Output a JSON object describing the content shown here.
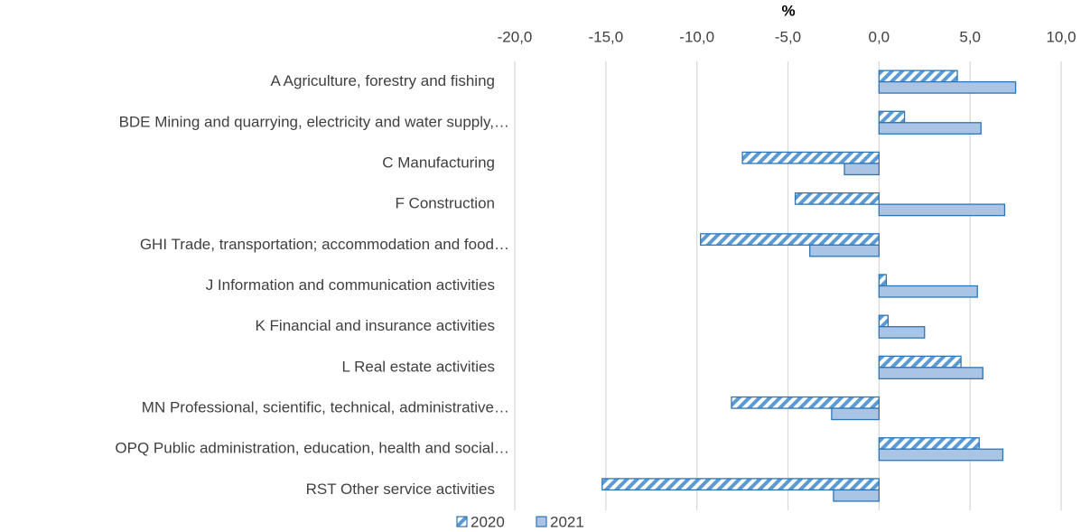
{
  "chart_data": {
    "type": "hbar",
    "x_label": "%",
    "categories": [
      "A Agriculture, forestry and fishing",
      "BDE Mining and quarrying, electricity and water supply,…",
      "C Manufacturing",
      "F Construction",
      "GHI Trade, transportation; accommodation and food…",
      "J Information and communication activities",
      "K Financial and insurance activities",
      "L Real estate activities",
      "MN Professional, scientific, technical, administrative…",
      "OPQ Public administration, education, health and social…",
      "RST Other service activities"
    ],
    "series": [
      {
        "name": "2020",
        "color": "#5b9bd5",
        "pattern": "hatch",
        "values": [
          4.3,
          1.4,
          -7.5,
          -4.6,
          -9.8,
          0.4,
          0.5,
          4.5,
          -8.1,
          5.5,
          -15.2
        ]
      },
      {
        "name": "2021",
        "color": "#a9c4e4",
        "pattern": "solid",
        "values": [
          7.5,
          5.6,
          -1.9,
          6.9,
          -3.8,
          5.4,
          2.5,
          5.7,
          -2.6,
          6.8,
          -2.5
        ]
      }
    ],
    "xlim": [
      -20,
      10
    ],
    "xticks": [
      {
        "value": -20,
        "label": "-20,0"
      },
      {
        "value": -15,
        "label": "-15,0"
      },
      {
        "value": -10,
        "label": "-10,0"
      },
      {
        "value": -5,
        "label": "-5,0"
      },
      {
        "value": 0,
        "label": "0,0"
      },
      {
        "value": 5,
        "label": "5,0"
      },
      {
        "value": 10,
        "label": "10,0"
      }
    ],
    "grid": true,
    "legend": "bottom"
  }
}
